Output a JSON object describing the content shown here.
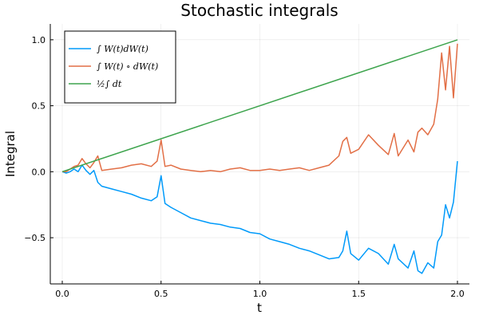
{
  "chart_data": {
    "type": "line",
    "title": "Stochastic integrals",
    "xlabel": "t",
    "ylabel": "Integral",
    "xlim": [
      0.0,
      2.0
    ],
    "ylim": [
      -0.85,
      1.12
    ],
    "xticks": [
      0.0,
      0.5,
      1.0,
      1.5,
      2.0
    ],
    "xtick_labels": [
      "0.0",
      "0.5",
      "1.0",
      "1.5",
      "2.0"
    ],
    "yticks": [
      -0.5,
      0.0,
      0.5,
      1.0
    ],
    "ytick_labels": [
      "−0.5",
      "0.0",
      "0.5",
      "1.0"
    ],
    "grid": true,
    "legend_position": "top-left",
    "series": [
      {
        "name": "∫ W(t)dW(t)",
        "color": "#009AFA",
        "x": [
          0.0,
          0.02,
          0.04,
          0.06,
          0.08,
          0.1,
          0.12,
          0.14,
          0.16,
          0.18,
          0.2,
          0.25,
          0.3,
          0.35,
          0.4,
          0.45,
          0.48,
          0.5,
          0.52,
          0.55,
          0.6,
          0.65,
          0.7,
          0.75,
          0.8,
          0.85,
          0.9,
          0.95,
          1.0,
          1.05,
          1.1,
          1.15,
          1.2,
          1.25,
          1.3,
          1.35,
          1.4,
          1.42,
          1.44,
          1.46,
          1.5,
          1.55,
          1.6,
          1.65,
          1.68,
          1.7,
          1.75,
          1.78,
          1.8,
          1.82,
          1.85,
          1.88,
          1.9,
          1.92,
          1.94,
          1.96,
          1.98,
          2.0
        ],
        "y": [
          0.0,
          -0.01,
          0.0,
          0.02,
          0.0,
          0.05,
          0.01,
          -0.02,
          0.01,
          -0.08,
          -0.11,
          -0.13,
          -0.15,
          -0.17,
          -0.2,
          -0.22,
          -0.19,
          -0.03,
          -0.24,
          -0.27,
          -0.31,
          -0.35,
          -0.37,
          -0.39,
          -0.4,
          -0.42,
          -0.43,
          -0.46,
          -0.47,
          -0.51,
          -0.53,
          -0.55,
          -0.58,
          -0.6,
          -0.63,
          -0.66,
          -0.65,
          -0.6,
          -0.45,
          -0.62,
          -0.67,
          -0.58,
          -0.62,
          -0.7,
          -0.55,
          -0.66,
          -0.73,
          -0.6,
          -0.75,
          -0.77,
          -0.69,
          -0.73,
          -0.53,
          -0.48,
          -0.25,
          -0.35,
          -0.23,
          0.08
        ]
      },
      {
        "name": "∫ W(t) ∘ dW(t)",
        "color": "#E26F46",
        "x": [
          0.0,
          0.02,
          0.04,
          0.06,
          0.08,
          0.1,
          0.12,
          0.14,
          0.16,
          0.18,
          0.2,
          0.25,
          0.3,
          0.35,
          0.4,
          0.45,
          0.48,
          0.5,
          0.52,
          0.55,
          0.6,
          0.65,
          0.7,
          0.75,
          0.8,
          0.85,
          0.9,
          0.95,
          1.0,
          1.05,
          1.1,
          1.15,
          1.2,
          1.25,
          1.3,
          1.35,
          1.4,
          1.42,
          1.44,
          1.46,
          1.5,
          1.55,
          1.6,
          1.65,
          1.68,
          1.7,
          1.75,
          1.78,
          1.8,
          1.82,
          1.85,
          1.88,
          1.9,
          1.92,
          1.94,
          1.96,
          1.98,
          2.0
        ],
        "y": [
          0.0,
          0.0,
          0.02,
          0.04,
          0.05,
          0.1,
          0.06,
          0.03,
          0.07,
          0.12,
          0.01,
          0.02,
          0.03,
          0.05,
          0.06,
          0.04,
          0.08,
          0.24,
          0.04,
          0.05,
          0.02,
          0.01,
          0.0,
          0.01,
          0.0,
          0.02,
          0.03,
          0.01,
          0.01,
          0.02,
          0.01,
          0.02,
          0.03,
          0.01,
          0.03,
          0.05,
          0.12,
          0.23,
          0.26,
          0.14,
          0.17,
          0.28,
          0.2,
          0.13,
          0.29,
          0.12,
          0.24,
          0.15,
          0.3,
          0.33,
          0.28,
          0.36,
          0.55,
          0.9,
          0.62,
          0.95,
          0.56,
          0.97
        ]
      },
      {
        "name": "½∫ dt",
        "color": "#3DA44D",
        "x": [
          0.0,
          2.0
        ],
        "y": [
          0.0,
          1.0
        ]
      }
    ]
  }
}
